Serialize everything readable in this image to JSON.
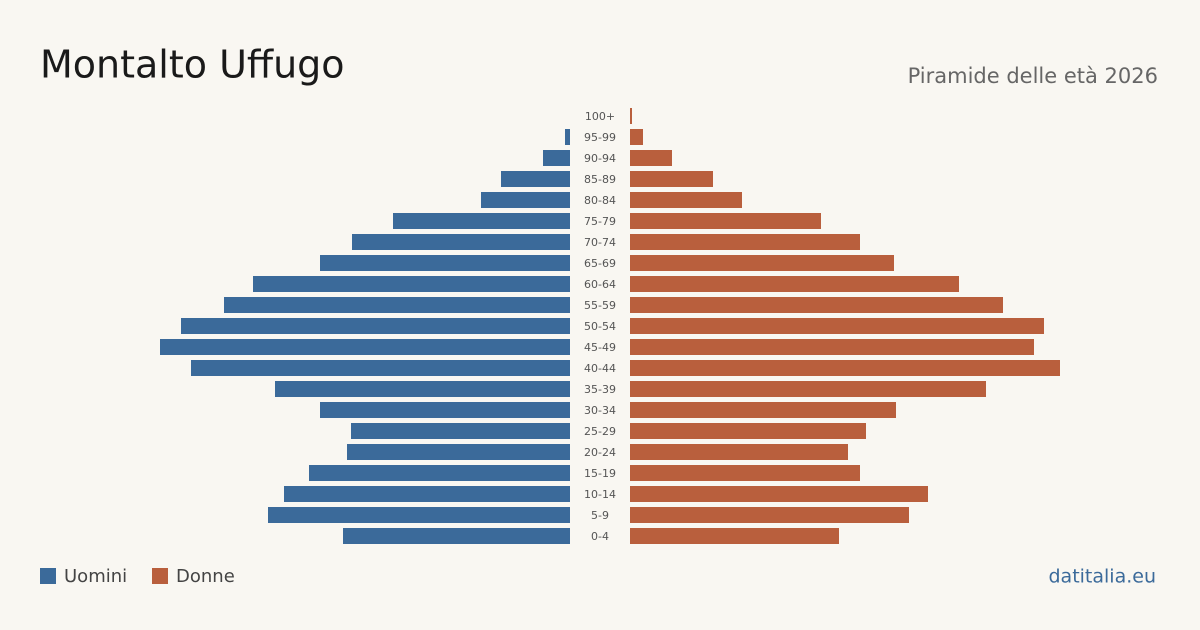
{
  "chart_data": {
    "type": "pyramid",
    "title": "Montalto Uffugo",
    "subtitle": "Piramide delle età 2026",
    "source": "datitalia.eu",
    "categories": [
      "100+",
      "95-99",
      "90-94",
      "85-89",
      "80-84",
      "75-79",
      "70-74",
      "65-69",
      "60-64",
      "55-59",
      "50-54",
      "45-49",
      "40-44",
      "35-39",
      "30-34",
      "25-29",
      "20-24",
      "15-19",
      "10-14",
      "5-9",
      "0-4"
    ],
    "series": [
      {
        "name": "Uomini",
        "color": "#3b6a9a",
        "values": [
          0,
          5,
          27,
          69,
          89,
          177,
          218,
          250,
          317,
          346,
          389,
          410,
          379,
          295,
          250,
          219,
          223,
          261,
          286,
          302,
          227
        ]
      },
      {
        "name": "Donne",
        "color": "#b95f3d",
        "values": [
          2,
          13,
          42,
          83,
          112,
          191,
          230,
          264,
          329,
          373,
          414,
          404,
          430,
          356,
          266,
          236,
          218,
          230,
          298,
          279,
          209
        ]
      }
    ]
  }
}
